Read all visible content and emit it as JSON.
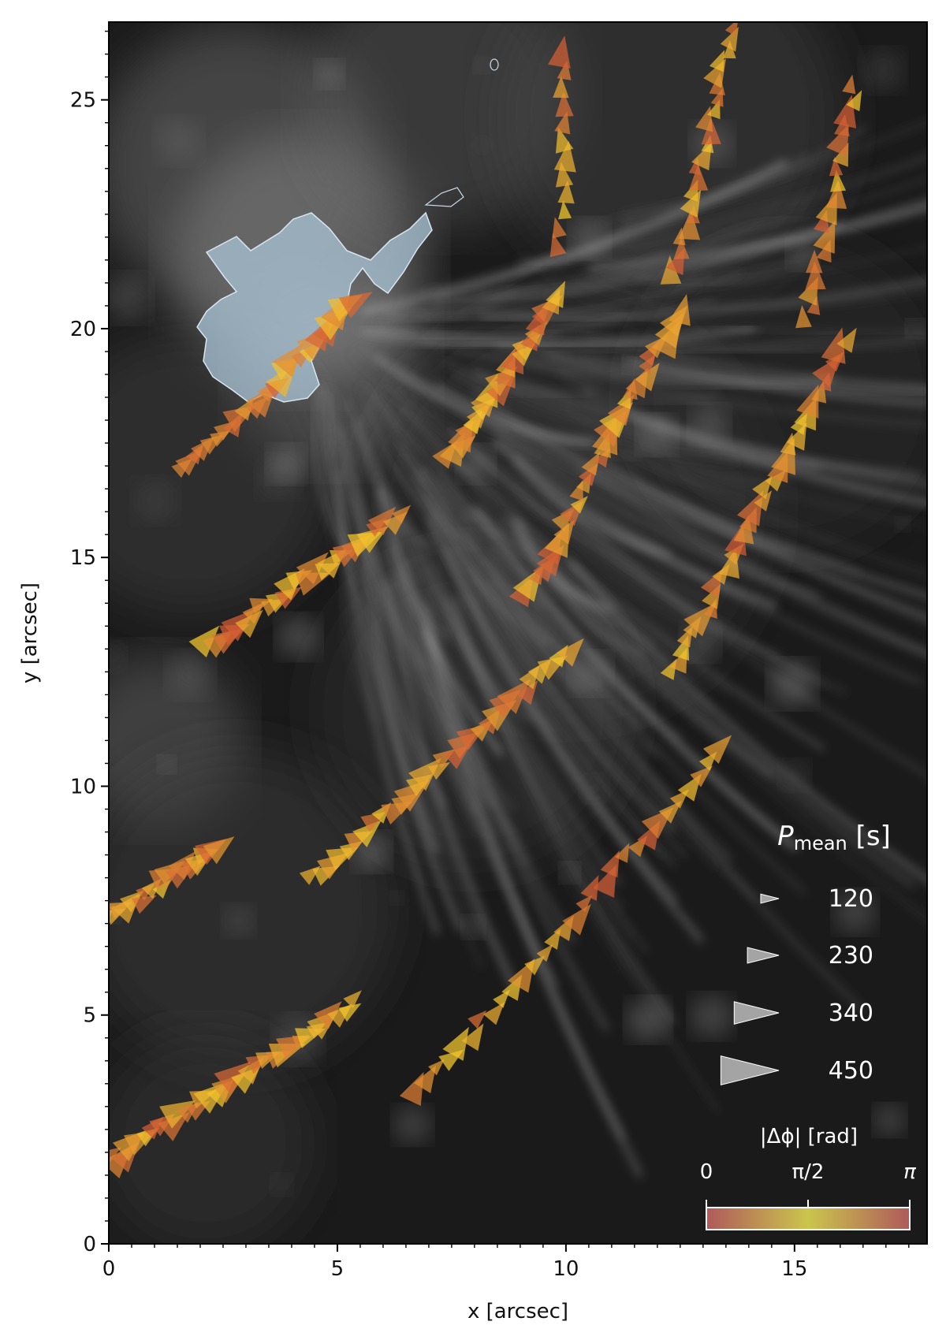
{
  "chart_data": {
    "type": "scatter",
    "title": "",
    "xlabel": "x [arcsec]",
    "ylabel": "y [arcsec]",
    "xlim": [
      0,
      17.9
    ],
    "ylim": [
      0,
      26.7
    ],
    "x_ticks": [
      0,
      5,
      10,
      15
    ],
    "y_ticks": [
      0,
      5,
      10,
      15,
      20,
      25
    ],
    "x_tick_labels": [
      "0",
      "5",
      "10",
      "15"
    ],
    "y_tick_labels": [
      "0",
      "5",
      "10",
      "15",
      "20",
      "25"
    ],
    "background": "grayscale intensity image of fibrils",
    "contour_color": "#9fb9cc",
    "marker": "triangle",
    "size_legend": {
      "title": "P",
      "title_sub": "mean",
      "title_unit": " [s]",
      "entries": [
        {
          "label": "120",
          "value": 120
        },
        {
          "label": "230",
          "value": 230
        },
        {
          "label": "340",
          "value": 340
        },
        {
          "label": "450",
          "value": 450
        }
      ]
    },
    "colorbar": {
      "title": "|Δϕ| [rad]",
      "tick_labels": [
        "0",
        "π/2",
        "π"
      ],
      "range": [
        0,
        3.1416
      ],
      "colors": [
        "#d46a6a",
        "#f7f05a",
        "#d46a6a"
      ]
    },
    "series": [
      {
        "start": [
          2.4,
          8.7
        ],
        "end": [
          0.0,
          7.1
        ],
        "n": 18,
        "period_range": [
          200,
          380
        ],
        "phase_seed": 1
      },
      {
        "start": [
          5.4,
          20.6
        ],
        "end": [
          1.7,
          16.9
        ],
        "n": 26,
        "period_range": [
          220,
          450
        ],
        "phase_seed": 2
      },
      {
        "start": [
          6.4,
          16.0
        ],
        "end": [
          2.2,
          13.1
        ],
        "n": 26,
        "period_range": [
          200,
          420
        ],
        "phase_seed": 3
      },
      {
        "start": [
          9.9,
          20.7
        ],
        "end": [
          7.5,
          17.2
        ],
        "n": 24,
        "period_range": [
          220,
          400
        ],
        "phase_seed": 4
      },
      {
        "start": [
          9.9,
          26.0
        ],
        "end": [
          9.9,
          21.8
        ],
        "n": 12,
        "period_range": [
          200,
          380
        ],
        "phase_seed": 5
      },
      {
        "start": [
          10.1,
          13.0
        ],
        "end": [
          4.5,
          8.0
        ],
        "n": 30,
        "period_range": [
          220,
          420
        ],
        "phase_seed": 6
      },
      {
        "start": [
          13.6,
          26.6
        ],
        "end": [
          12.4,
          21.2
        ],
        "n": 22,
        "period_range": [
          180,
          360
        ],
        "phase_seed": 7
      },
      {
        "start": [
          12.5,
          20.4
        ],
        "end": [
          9.2,
          14.2
        ],
        "n": 32,
        "period_range": [
          200,
          440
        ],
        "phase_seed": 8
      },
      {
        "start": [
          16.3,
          25.3
        ],
        "end": [
          15.3,
          20.2
        ],
        "n": 18,
        "period_range": [
          180,
          380
        ],
        "phase_seed": 9
      },
      {
        "start": [
          16.1,
          19.8
        ],
        "end": [
          12.4,
          12.5
        ],
        "n": 32,
        "period_range": [
          200,
          420
        ],
        "phase_seed": 10
      },
      {
        "start": [
          13.4,
          10.8
        ],
        "end": [
          6.8,
          3.3
        ],
        "n": 30,
        "period_range": [
          180,
          400
        ],
        "phase_seed": 11
      },
      {
        "start": [
          5.4,
          5.3
        ],
        "end": [
          0.0,
          1.8
        ],
        "n": 32,
        "period_range": [
          200,
          440
        ],
        "phase_seed": 12
      }
    ]
  }
}
